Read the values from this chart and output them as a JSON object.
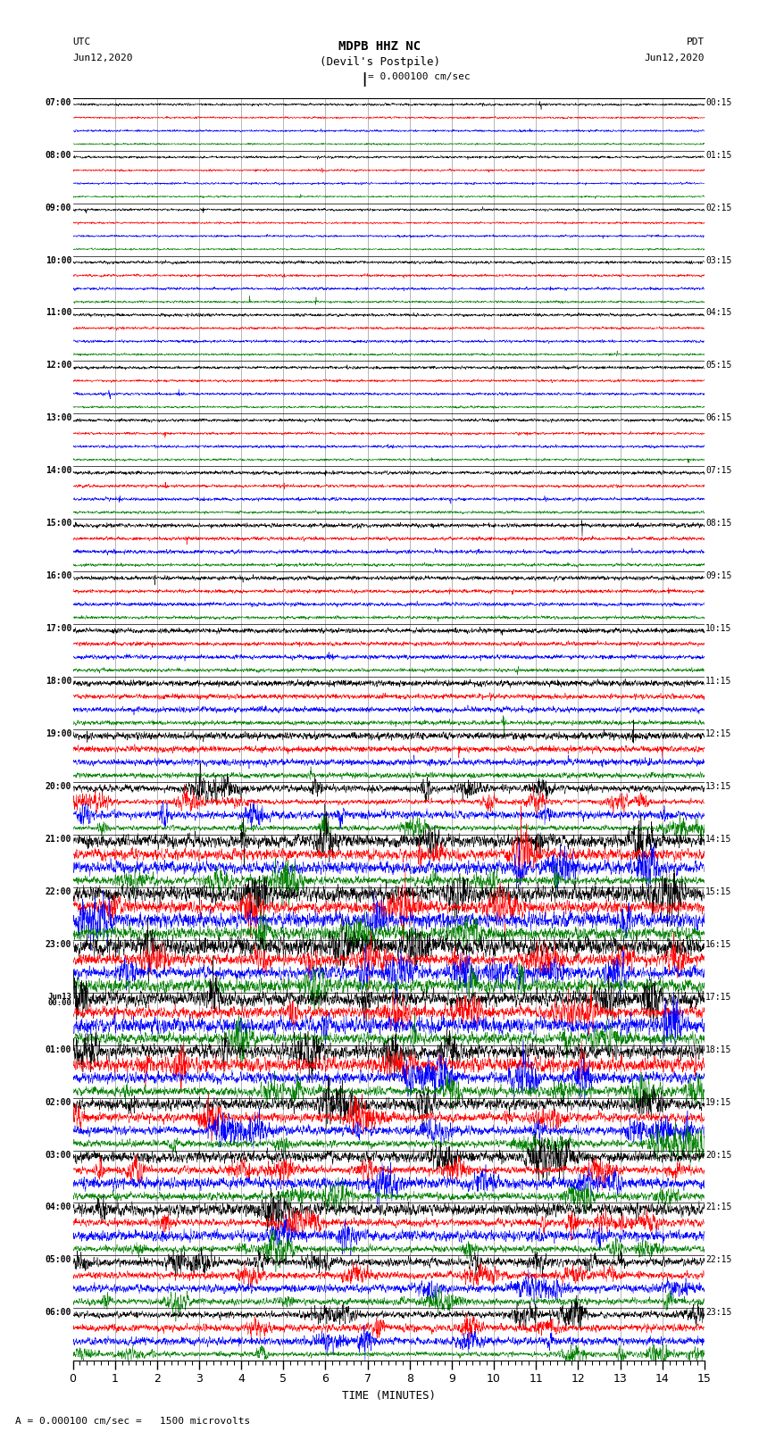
{
  "title_line1": "MDPB HHZ NC",
  "title_line2": "(Devil's Postpile)",
  "scale_label": "= 0.000100 cm/sec",
  "utc_label": "UTC",
  "pdt_label": "PDT",
  "date_left": "Jun12,2020",
  "date_right": "Jun12,2020",
  "bottom_label": "A = 0.000100 cm/sec =   1500 microvolts",
  "xlabel": "TIME (MINUTES)",
  "xlim": [
    0,
    15
  ],
  "xticks": [
    0,
    1,
    2,
    3,
    4,
    5,
    6,
    7,
    8,
    9,
    10,
    11,
    12,
    13,
    14,
    15
  ],
  "left_times": [
    "07:00",
    "08:00",
    "09:00",
    "10:00",
    "11:00",
    "12:00",
    "13:00",
    "14:00",
    "15:00",
    "16:00",
    "17:00",
    "18:00",
    "19:00",
    "20:00",
    "21:00",
    "22:00",
    "23:00",
    "Jun13\n00:00",
    "01:00",
    "02:00",
    "03:00",
    "04:00",
    "05:00",
    "06:00"
  ],
  "right_times": [
    "00:15",
    "01:15",
    "02:15",
    "03:15",
    "04:15",
    "05:15",
    "06:15",
    "07:15",
    "08:15",
    "09:15",
    "10:15",
    "11:15",
    "12:15",
    "13:15",
    "14:15",
    "15:15",
    "16:15",
    "17:15",
    "18:15",
    "19:15",
    "20:15",
    "21:15",
    "22:15",
    "23:15"
  ],
  "n_rows": 24,
  "traces_per_row": 4,
  "trace_colors_order": [
    "black",
    "red",
    "blue",
    "green"
  ],
  "bg_color": "white",
  "base_amplitudes": [
    0.04,
    0.04,
    0.04,
    0.05,
    0.05,
    0.05,
    0.05,
    0.06,
    0.07,
    0.07,
    0.08,
    0.1,
    0.12,
    0.2,
    0.32,
    0.38,
    0.38,
    0.35,
    0.35,
    0.3,
    0.28,
    0.25,
    0.22,
    0.2
  ]
}
